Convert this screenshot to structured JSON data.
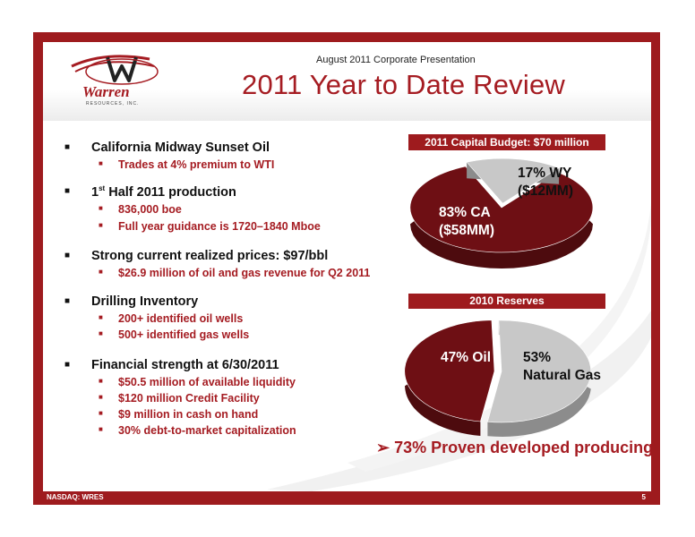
{
  "header": {
    "subtitle": "August 2011 Corporate Presentation",
    "title": "2011 Year to Date Review",
    "logo_text": "Warren",
    "logo_subtext": "RESOURCES, INC."
  },
  "bullets": [
    {
      "text": "California Midway Sunset Oil",
      "subs": [
        "Trades at 4% premium to WTI"
      ]
    },
    {
      "text_pre": "1",
      "text_sup": "st",
      "text_post": " Half 2011 production",
      "subs": [
        "836,000 boe",
        "Full year guidance is 1720–1840 Mboe"
      ]
    },
    {
      "text": "Strong current realized prices: $97/bbl",
      "subs": [
        "$26.9 million of oil and gas revenue for Q2 2011"
      ]
    },
    {
      "text": "Drilling Inventory",
      "subs": [
        "200+ identified oil wells",
        "500+ identified gas wells"
      ]
    },
    {
      "text": "Financial strength at 6/30/2011",
      "subs": [
        "$50.5 million of available liquidity",
        "$120 million Credit Facility",
        "$9 million in cash on hand",
        "30% debt-to-market capitalization"
      ]
    }
  ],
  "charts": {
    "budget": {
      "label": "2011 Capital  Budget: $70 million",
      "ca_line1": "83% CA",
      "ca_line2": "($58MM)",
      "wy_line1": "17% WY",
      "wy_line2": "($12MM)"
    },
    "reserves": {
      "label": "2010 Reserves",
      "oil": "47% Oil",
      "gas_line1": "53%",
      "gas_line2": "Natural Gas"
    }
  },
  "chart_data": [
    {
      "type": "pie",
      "title": "2011 Capital  Budget: $70 million",
      "categories": [
        "CA",
        "WY"
      ],
      "values": [
        83,
        17
      ],
      "amounts": [
        "$58MM",
        "$12MM"
      ],
      "colors": [
        "#6e0f14",
        "#c8c8c8"
      ]
    },
    {
      "type": "pie",
      "title": "2010 Reserves",
      "categories": [
        "Oil",
        "Natural Gas"
      ],
      "values": [
        47,
        53
      ],
      "colors": [
        "#6e0f14",
        "#c8c8c8"
      ]
    }
  ],
  "proved": "73% Proven developed producing",
  "proved_marker": "➢",
  "footer": {
    "ticker": "NASDAQ: WRES",
    "page": "5"
  },
  "colors": {
    "brand_red": "#a51c22",
    "dark_red": "#6e0f14",
    "gray": "#c8c8c8"
  }
}
